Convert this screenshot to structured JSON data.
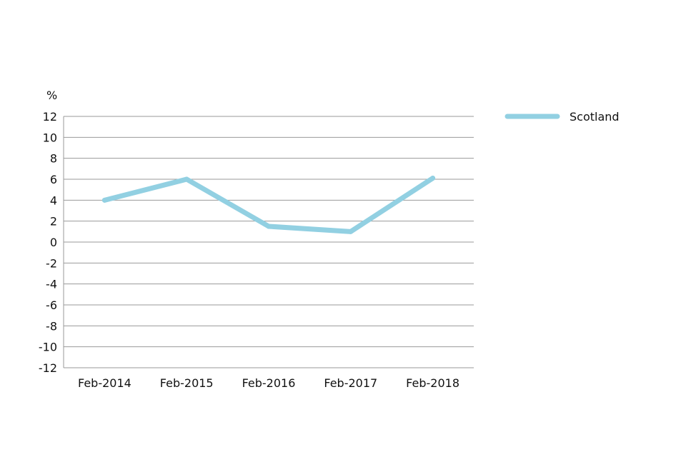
{
  "chart_data": {
    "type": "line",
    "title": "",
    "xlabel": "",
    "ylabel": "",
    "unit_label": "%",
    "categories": [
      "Feb-2014",
      "Feb-2015",
      "Feb-2016",
      "Feb-2017",
      "Feb-2018"
    ],
    "ylim": [
      -12,
      12
    ],
    "yticks": [
      12,
      10,
      8,
      6,
      4,
      2,
      0,
      -2,
      -4,
      -6,
      -8,
      -10,
      -12
    ],
    "grid": true,
    "legend_position": "top-right",
    "series": [
      {
        "name": "Scotland",
        "color": "#92d0e2",
        "values": [
          4.0,
          6.0,
          1.5,
          1.0,
          6.1
        ]
      }
    ]
  }
}
